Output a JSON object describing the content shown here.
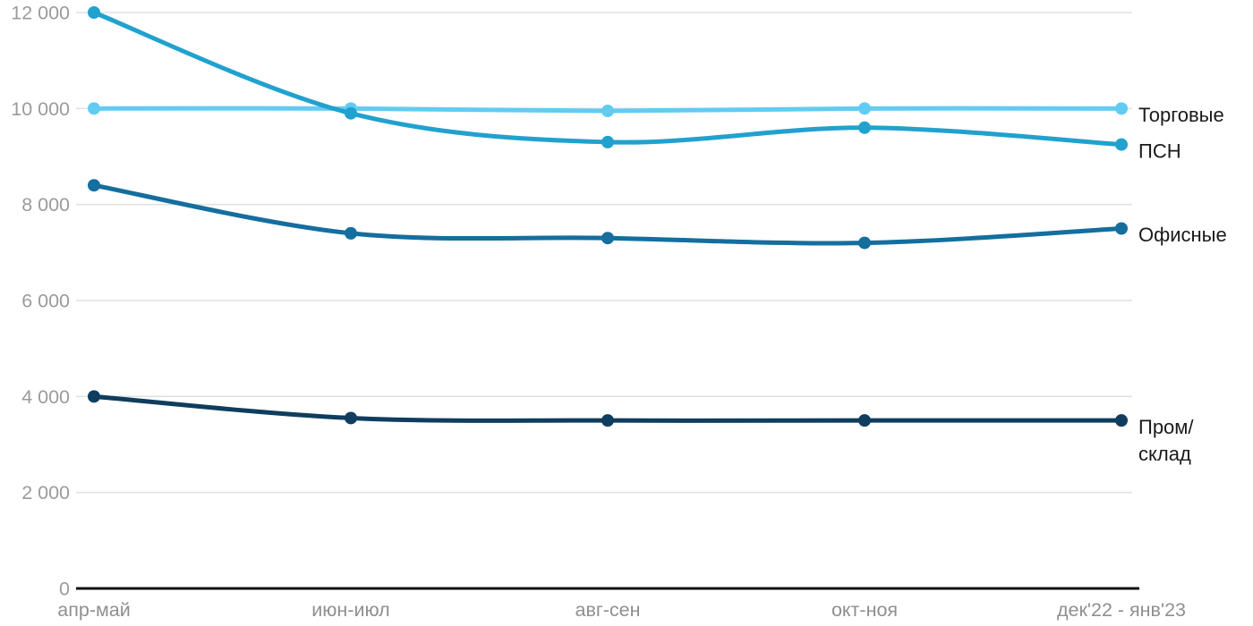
{
  "chart_data": {
    "type": "line",
    "title": "",
    "xlabel": "",
    "ylabel": "",
    "x_categories": [
      "апр-май",
      "июн-июл",
      "авг-сен",
      "окт-ноя",
      "дек'22 - янв'23"
    ],
    "ylim": [
      0,
      12000
    ],
    "y_ticks": [
      {
        "value": 0,
        "label": "0"
      },
      {
        "value": 2000,
        "label": "2 000"
      },
      {
        "value": 4000,
        "label": "4 000"
      },
      {
        "value": 6000,
        "label": "6 000"
      },
      {
        "value": 8000,
        "label": "8 000"
      },
      {
        "value": 10000,
        "label": "10 000"
      },
      {
        "value": 12000,
        "label": "12 000"
      }
    ],
    "grid": "horizontal-on",
    "legend_position": "right-at-line-end",
    "line_style": "smooth-spline-with-dots",
    "series": [
      {
        "key": "torgovye",
        "name": "Торговые",
        "label_lines": [
          "Торговые"
        ],
        "color": "#62cbf2",
        "values": [
          10000,
          10000,
          9950,
          10000,
          10000
        ]
      },
      {
        "key": "psn",
        "name": "ПСН",
        "label_lines": [
          "ПСН"
        ],
        "color": "#21a1ce",
        "values": [
          12000,
          9900,
          9300,
          9600,
          9250
        ]
      },
      {
        "key": "ofisnye",
        "name": "Офисные",
        "label_lines": [
          "Офисные"
        ],
        "color": "#146e9e",
        "values": [
          8400,
          7400,
          7300,
          7200,
          7500
        ]
      },
      {
        "key": "prom-sklad",
        "name": "Пром/склад",
        "label_lines": [
          "Пром/",
          "склад"
        ],
        "color": "#0f3d5e",
        "values": [
          4000,
          3550,
          3500,
          3500,
          3500
        ]
      }
    ],
    "colors": {
      "background": "#ffffff",
      "gridline": "#e2e2e2",
      "axis": "#111111",
      "y_tick_text": "#9b9b9b",
      "x_tick_text": "#8f8f8f",
      "legend_text": "#1a1a1a"
    }
  }
}
